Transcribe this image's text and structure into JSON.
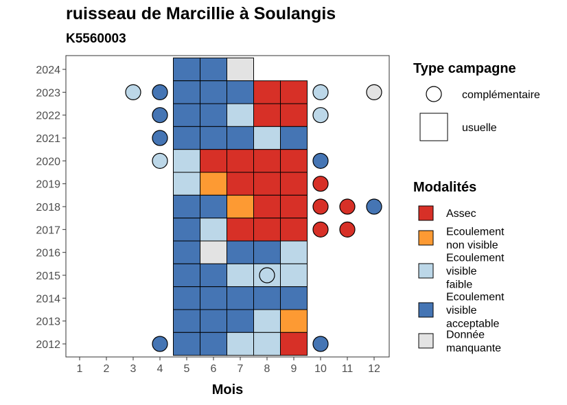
{
  "chart_data": {
    "type": "heatmap",
    "title": "ruisseau de Marcillie à Soulangis",
    "subtitle": "K5560003",
    "xlabel": "Mois",
    "ylabel": "",
    "x_ticks": [
      1,
      2,
      3,
      4,
      5,
      6,
      7,
      8,
      9,
      10,
      11,
      12
    ],
    "y_ticks": [
      2012,
      2013,
      2014,
      2015,
      2016,
      2017,
      2018,
      2019,
      2020,
      2021,
      2022,
      2023,
      2024
    ],
    "colors": {
      "Assec": "#d73027",
      "Ecoulement non visible": "#fd9a33",
      "Ecoulement visible faible": "#bcd7e8",
      "Ecoulement visible acceptable": "#4575b4",
      "Donnée manquante": "#e3e3e3"
    },
    "usuelle": [
      {
        "year": 2024,
        "month": 5,
        "modalite": "Ecoulement visible acceptable"
      },
      {
        "year": 2024,
        "month": 6,
        "modalite": "Ecoulement visible acceptable"
      },
      {
        "year": 2024,
        "month": 7,
        "modalite": "Donnée manquante"
      },
      {
        "year": 2023,
        "month": 5,
        "modalite": "Ecoulement visible acceptable"
      },
      {
        "year": 2023,
        "month": 6,
        "modalite": "Ecoulement visible acceptable"
      },
      {
        "year": 2023,
        "month": 7,
        "modalite": "Ecoulement visible acceptable"
      },
      {
        "year": 2023,
        "month": 8,
        "modalite": "Assec"
      },
      {
        "year": 2023,
        "month": 9,
        "modalite": "Assec"
      },
      {
        "year": 2022,
        "month": 5,
        "modalite": "Ecoulement visible acceptable"
      },
      {
        "year": 2022,
        "month": 6,
        "modalite": "Ecoulement visible acceptable"
      },
      {
        "year": 2022,
        "month": 7,
        "modalite": "Ecoulement visible faible"
      },
      {
        "year": 2022,
        "month": 8,
        "modalite": "Assec"
      },
      {
        "year": 2022,
        "month": 9,
        "modalite": "Assec"
      },
      {
        "year": 2021,
        "month": 5,
        "modalite": "Ecoulement visible acceptable"
      },
      {
        "year": 2021,
        "month": 6,
        "modalite": "Ecoulement visible acceptable"
      },
      {
        "year": 2021,
        "month": 7,
        "modalite": "Ecoulement visible acceptable"
      },
      {
        "year": 2021,
        "month": 8,
        "modalite": "Ecoulement visible faible"
      },
      {
        "year": 2021,
        "month": 9,
        "modalite": "Ecoulement visible acceptable"
      },
      {
        "year": 2020,
        "month": 5,
        "modalite": "Ecoulement visible faible"
      },
      {
        "year": 2020,
        "month": 6,
        "modalite": "Assec"
      },
      {
        "year": 2020,
        "month": 7,
        "modalite": "Assec"
      },
      {
        "year": 2020,
        "month": 8,
        "modalite": "Assec"
      },
      {
        "year": 2020,
        "month": 9,
        "modalite": "Assec"
      },
      {
        "year": 2019,
        "month": 5,
        "modalite": "Ecoulement visible faible"
      },
      {
        "year": 2019,
        "month": 6,
        "modalite": "Ecoulement non visible"
      },
      {
        "year": 2019,
        "month": 7,
        "modalite": "Assec"
      },
      {
        "year": 2019,
        "month": 8,
        "modalite": "Assec"
      },
      {
        "year": 2019,
        "month": 9,
        "modalite": "Assec"
      },
      {
        "year": 2018,
        "month": 5,
        "modalite": "Ecoulement visible acceptable"
      },
      {
        "year": 2018,
        "month": 6,
        "modalite": "Ecoulement visible acceptable"
      },
      {
        "year": 2018,
        "month": 7,
        "modalite": "Ecoulement non visible"
      },
      {
        "year": 2018,
        "month": 8,
        "modalite": "Assec"
      },
      {
        "year": 2018,
        "month": 9,
        "modalite": "Assec"
      },
      {
        "year": 2017,
        "month": 5,
        "modalite": "Ecoulement visible acceptable"
      },
      {
        "year": 2017,
        "month": 6,
        "modalite": "Ecoulement visible faible"
      },
      {
        "year": 2017,
        "month": 7,
        "modalite": "Assec"
      },
      {
        "year": 2017,
        "month": 8,
        "modalite": "Assec"
      },
      {
        "year": 2017,
        "month": 9,
        "modalite": "Assec"
      },
      {
        "year": 2016,
        "month": 5,
        "modalite": "Ecoulement visible acceptable"
      },
      {
        "year": 2016,
        "month": 6,
        "modalite": "Donnée manquante"
      },
      {
        "year": 2016,
        "month": 7,
        "modalite": "Ecoulement visible acceptable"
      },
      {
        "year": 2016,
        "month": 8,
        "modalite": "Ecoulement visible acceptable"
      },
      {
        "year": 2016,
        "month": 9,
        "modalite": "Ecoulement visible faible"
      },
      {
        "year": 2015,
        "month": 5,
        "modalite": "Ecoulement visible acceptable"
      },
      {
        "year": 2015,
        "month": 6,
        "modalite": "Ecoulement visible acceptable"
      },
      {
        "year": 2015,
        "month": 7,
        "modalite": "Ecoulement visible faible"
      },
      {
        "year": 2015,
        "month": 8,
        "modalite": "Ecoulement visible faible"
      },
      {
        "year": 2015,
        "month": 9,
        "modalite": "Ecoulement visible faible"
      },
      {
        "year": 2014,
        "month": 5,
        "modalite": "Ecoulement visible acceptable"
      },
      {
        "year": 2014,
        "month": 6,
        "modalite": "Ecoulement visible acceptable"
      },
      {
        "year": 2014,
        "month": 7,
        "modalite": "Ecoulement visible acceptable"
      },
      {
        "year": 2014,
        "month": 8,
        "modalite": "Ecoulement visible acceptable"
      },
      {
        "year": 2014,
        "month": 9,
        "modalite": "Ecoulement visible acceptable"
      },
      {
        "year": 2013,
        "month": 5,
        "modalite": "Ecoulement visible acceptable"
      },
      {
        "year": 2013,
        "month": 6,
        "modalite": "Ecoulement visible acceptable"
      },
      {
        "year": 2013,
        "month": 7,
        "modalite": "Ecoulement visible acceptable"
      },
      {
        "year": 2013,
        "month": 8,
        "modalite": "Ecoulement visible faible"
      },
      {
        "year": 2013,
        "month": 9,
        "modalite": "Ecoulement non visible"
      },
      {
        "year": 2012,
        "month": 5,
        "modalite": "Ecoulement visible acceptable"
      },
      {
        "year": 2012,
        "month": 6,
        "modalite": "Ecoulement visible acceptable"
      },
      {
        "year": 2012,
        "month": 7,
        "modalite": "Ecoulement visible faible"
      },
      {
        "year": 2012,
        "month": 8,
        "modalite": "Ecoulement visible faible"
      },
      {
        "year": 2012,
        "month": 9,
        "modalite": "Assec"
      }
    ],
    "complementaire": [
      {
        "year": 2023,
        "month": 3,
        "modalite": "Ecoulement visible faible"
      },
      {
        "year": 2023,
        "month": 4,
        "modalite": "Ecoulement visible acceptable"
      },
      {
        "year": 2023,
        "month": 10,
        "modalite": "Ecoulement visible faible"
      },
      {
        "year": 2023,
        "month": 12,
        "modalite": "Donnée manquante"
      },
      {
        "year": 2022,
        "month": 4,
        "modalite": "Ecoulement visible acceptable"
      },
      {
        "year": 2022,
        "month": 10,
        "modalite": "Ecoulement visible faible"
      },
      {
        "year": 2021,
        "month": 4,
        "modalite": "Ecoulement visible acceptable"
      },
      {
        "year": 2020,
        "month": 4,
        "modalite": "Ecoulement visible faible"
      },
      {
        "year": 2020,
        "month": 10,
        "modalite": "Ecoulement visible acceptable"
      },
      {
        "year": 2019,
        "month": 10,
        "modalite": "Assec"
      },
      {
        "year": 2018,
        "month": 10,
        "modalite": "Assec"
      },
      {
        "year": 2018,
        "month": 11,
        "modalite": "Assec"
      },
      {
        "year": 2018,
        "month": 12,
        "modalite": "Ecoulement visible acceptable"
      },
      {
        "year": 2017,
        "month": 10,
        "modalite": "Assec"
      },
      {
        "year": 2017,
        "month": 11,
        "modalite": "Assec"
      },
      {
        "year": 2015,
        "month": 8,
        "modalite": "Ecoulement visible faible"
      },
      {
        "year": 2012,
        "month": 4,
        "modalite": "Ecoulement visible acceptable"
      },
      {
        "year": 2012,
        "month": 10,
        "modalite": "Ecoulement visible acceptable"
      }
    ],
    "legend": {
      "type_title": "Type campagne",
      "type_items": [
        "complémentaire",
        "usuelle"
      ],
      "modalite_title": "Modalités",
      "modalite_items": [
        {
          "key": "Assec",
          "lines": [
            "Assec"
          ]
        },
        {
          "key": "Ecoulement non visible",
          "lines": [
            "Ecoulement",
            "non visible"
          ]
        },
        {
          "key": "Ecoulement visible faible",
          "lines": [
            "Ecoulement",
            "visible",
            "faible"
          ]
        },
        {
          "key": "Ecoulement visible acceptable",
          "lines": [
            "Ecoulement",
            "visible",
            "acceptable"
          ]
        },
        {
          "key": "Donnée manquante",
          "lines": [
            "Donnée",
            "manquante"
          ]
        }
      ]
    }
  }
}
